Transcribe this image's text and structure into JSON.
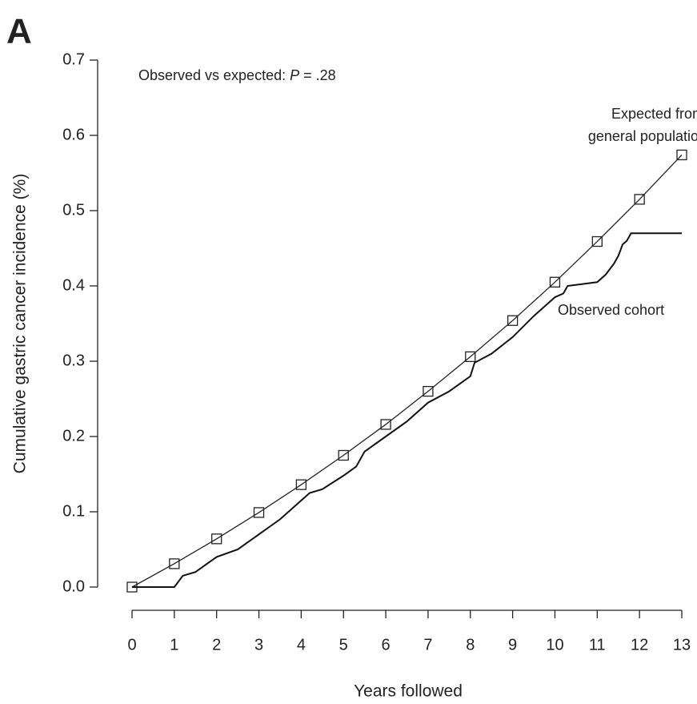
{
  "chart_data": {
    "type": "line",
    "panel_label": "A",
    "annotation": [
      "Observed vs expected: ",
      "P",
      " = .28"
    ],
    "x_label": "Years followed",
    "y_label": "Cumulative gastric cancer incidence (%)",
    "xlim": [
      0,
      13
    ],
    "xticks": [
      0,
      1,
      2,
      3,
      4,
      5,
      6,
      7,
      8,
      9,
      10,
      11,
      12,
      13
    ],
    "ylim": [
      0,
      0.7
    ],
    "yticks": [
      {
        "value": 0,
        "label": "0.0"
      },
      0.1,
      0.2,
      0.3,
      0.4,
      0.5,
      0.6,
      0.7
    ],
    "series": [
      {
        "name": [
          "Expected from",
          "general population"
        ],
        "color": "#222222",
        "markers": true,
        "x": [
          0,
          1,
          2,
          3,
          4,
          5,
          6,
          7,
          8,
          9,
          10,
          11,
          12,
          13
        ],
        "values": [
          0,
          0.031,
          0.064,
          0.099,
          0.136,
          0.175,
          0.216,
          0.26,
          0.306,
          0.354,
          0.405,
          0.459,
          0.515,
          0.574
        ]
      },
      {
        "name": [
          "Observed cohort"
        ],
        "color": "#111111",
        "markers": false,
        "x": [
          0,
          1.0,
          1.2,
          1.5,
          2,
          2.5,
          3,
          3.5,
          4,
          4.2,
          4.5,
          5,
          5.3,
          5.5,
          6,
          6.5,
          7,
          7.5,
          8,
          8.1,
          8.5,
          9,
          9.5,
          10,
          10.2,
          10.3,
          11,
          11.2,
          11.4,
          11.5,
          11.6,
          11.7,
          11.8,
          13
        ],
        "values": [
          0,
          0,
          0.015,
          0.02,
          0.04,
          0.05,
          0.07,
          0.09,
          0.115,
          0.125,
          0.13,
          0.148,
          0.16,
          0.18,
          0.2,
          0.22,
          0.245,
          0.26,
          0.28,
          0.298,
          0.31,
          0.332,
          0.36,
          0.385,
          0.39,
          0.4,
          0.405,
          0.415,
          0.43,
          0.44,
          0.455,
          0.46,
          0.47,
          0.47
        ]
      }
    ]
  }
}
